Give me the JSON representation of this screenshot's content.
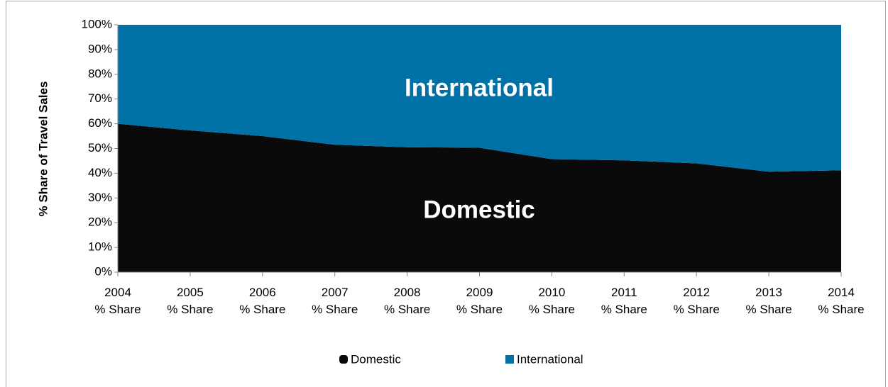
{
  "chart_data": {
    "type": "stacked_area",
    "y_axis_label": "% Share of Travel Sales",
    "categories": [
      "2004\n% Share",
      "2005\n% Share",
      "2006\n% Share",
      "2007\n% Share",
      "2008\n% Share",
      "2009\n% Share",
      "2010\n% Share",
      "2011\n% Share",
      "2012\n% Share",
      "2013\n% Share",
      "2014\n% Share"
    ],
    "series": [
      {
        "name": "Domestic",
        "color": "#0a0a0a",
        "values": [
          60,
          57.3,
          55,
          51.5,
          50.5,
          50.3,
          45.7,
          45.2,
          44,
          40.6,
          41.2
        ]
      },
      {
        "name": "International",
        "color": "#0071a6",
        "values": [
          40,
          42.7,
          45,
          48.5,
          49.5,
          49.7,
          54.3,
          54.8,
          56,
          59.4,
          58.8
        ]
      }
    ],
    "annotations": [
      "International",
      "Domestic"
    ],
    "ylim": [
      0,
      100
    ],
    "yticks": [
      {
        "value": 0,
        "label": "0%"
      },
      {
        "value": 10,
        "label": "10%"
      },
      {
        "value": 20,
        "label": "20%"
      },
      {
        "value": 30,
        "label": "30%"
      },
      {
        "value": 40,
        "label": "40%"
      },
      {
        "value": 50,
        "label": "50%"
      },
      {
        "value": 60,
        "label": "60%"
      },
      {
        "value": 70,
        "label": "70%"
      },
      {
        "value": 80,
        "label": "80%"
      },
      {
        "value": 90,
        "label": "90%"
      },
      {
        "value": 100,
        "label": "100%"
      }
    ],
    "legend_position": "bottom"
  }
}
